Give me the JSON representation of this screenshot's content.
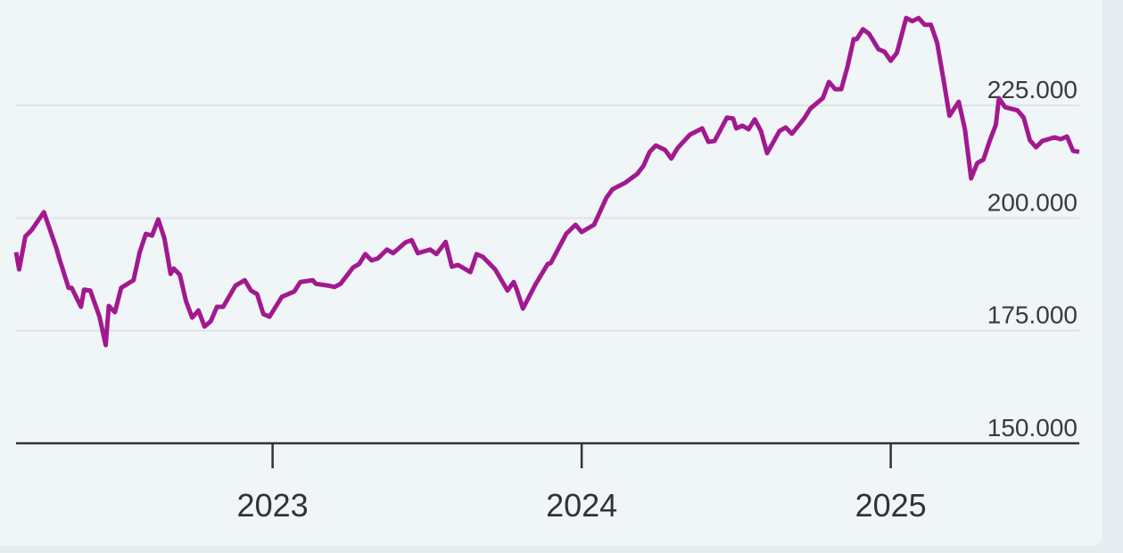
{
  "chart_data": {
    "type": "line",
    "x": [
      2022.17,
      2022.18,
      2022.2,
      2022.22,
      2022.26,
      2022.3,
      2022.31,
      2022.34,
      2022.35,
      2022.38,
      2022.39,
      2022.41,
      2022.44,
      2022.46,
      2022.47,
      2022.49,
      2022.51,
      2022.55,
      2022.57,
      2022.59,
      2022.61,
      2022.63,
      2022.65,
      2022.67,
      2022.68,
      2022.7,
      2022.72,
      2022.74,
      2022.76,
      2022.78,
      2022.8,
      2022.82,
      2022.84,
      2022.88,
      2022.91,
      2022.93,
      2022.95,
      2022.97,
      2022.99,
      2023.03,
      2023.07,
      2023.09,
      2023.13,
      2023.14,
      2023.18,
      2023.2,
      2023.22,
      2023.26,
      2023.28,
      2023.3,
      2023.32,
      2023.34,
      2023.37,
      2023.39,
      2023.43,
      2023.45,
      2023.47,
      2023.51,
      2023.53,
      2023.56,
      2023.58,
      2023.6,
      2023.64,
      2023.66,
      2023.68,
      2023.72,
      2023.76,
      2023.78,
      2023.79,
      2023.81,
      2023.85,
      2023.89,
      2023.9,
      2023.95,
      2023.98,
      2024.0,
      2024.04,
      2024.08,
      2024.1,
      2024.14,
      2024.18,
      2024.2,
      2024.22,
      2024.24,
      2024.27,
      2024.29,
      2024.31,
      2024.35,
      2024.39,
      2024.41,
      2024.43,
      2024.47,
      2024.49,
      2024.5,
      2024.52,
      2024.54,
      2024.56,
      2024.58,
      2024.6,
      2024.64,
      2024.66,
      2024.68,
      2024.72,
      2024.74,
      2024.78,
      2024.8,
      2024.82,
      2024.84,
      2024.86,
      2024.88,
      2024.89,
      2024.91,
      2024.93,
      2024.96,
      2024.98,
      2025.0,
      2025.02,
      2025.05,
      2025.07,
      2025.09,
      2025.11,
      2025.13,
      2025.15,
      2025.17,
      2025.19,
      2025.22,
      2025.24,
      2025.26,
      2025.28,
      2025.3,
      2025.32,
      2025.34,
      2025.35,
      2025.37,
      2025.41,
      2025.43,
      2025.45,
      2025.47,
      2025.49,
      2025.53,
      2025.55,
      2025.57,
      2025.59,
      2025.61
    ],
    "series": [
      {
        "color": "#a2198f",
        "values": [
          192400,
          188600,
          195900,
          197300,
          201300,
          193400,
          191000,
          184500,
          184500,
          180300,
          184100,
          183900,
          178100,
          171800,
          180500,
          179100,
          184500,
          186200,
          192400,
          196500,
          196100,
          199700,
          195500,
          187600,
          188800,
          187400,
          181500,
          177900,
          179500,
          175900,
          177100,
          180300,
          180300,
          185000,
          186200,
          183900,
          183100,
          178700,
          178100,
          182500,
          183700,
          185800,
          186200,
          185400,
          185000,
          184700,
          185400,
          189000,
          189800,
          192000,
          190600,
          191000,
          193000,
          192200,
          194600,
          195100,
          192200,
          193000,
          192000,
          194700,
          189200,
          189600,
          188000,
          192000,
          191400,
          188600,
          183900,
          185800,
          184100,
          179900,
          185200,
          189800,
          190000,
          196500,
          198500,
          196900,
          198500,
          204500,
          206400,
          207800,
          209800,
          211600,
          214700,
          216100,
          215100,
          213200,
          215500,
          218500,
          219900,
          216900,
          217100,
          222300,
          222100,
          219900,
          220500,
          219700,
          221900,
          219300,
          214400,
          219300,
          220100,
          218700,
          222100,
          224300,
          226600,
          230200,
          228600,
          228600,
          233600,
          239700,
          239700,
          241900,
          240900,
          237500,
          236900,
          234900,
          236700,
          244400,
          243700,
          244400,
          242900,
          242900,
          238900,
          231000,
          222700,
          225800,
          219700,
          208800,
          212200,
          213000,
          217100,
          220700,
          226600,
          224600,
          223900,
          222300,
          217300,
          215700,
          217100,
          217900,
          217500,
          218100,
          214900,
          214700
        ]
      }
    ],
    "xlim": [
      2022.17,
      2025.61
    ],
    "xticks": [
      2023,
      2024,
      2025
    ],
    "ylim": [
      150000,
      248000
    ],
    "yticks": [
      {
        "value": 150000,
        "label": "150.000"
      },
      {
        "value": 175000,
        "label": "175.000"
      },
      {
        "value": 200000,
        "label": "200.000"
      },
      {
        "value": 225000,
        "label": "225.000"
      }
    ],
    "grid": true
  }
}
